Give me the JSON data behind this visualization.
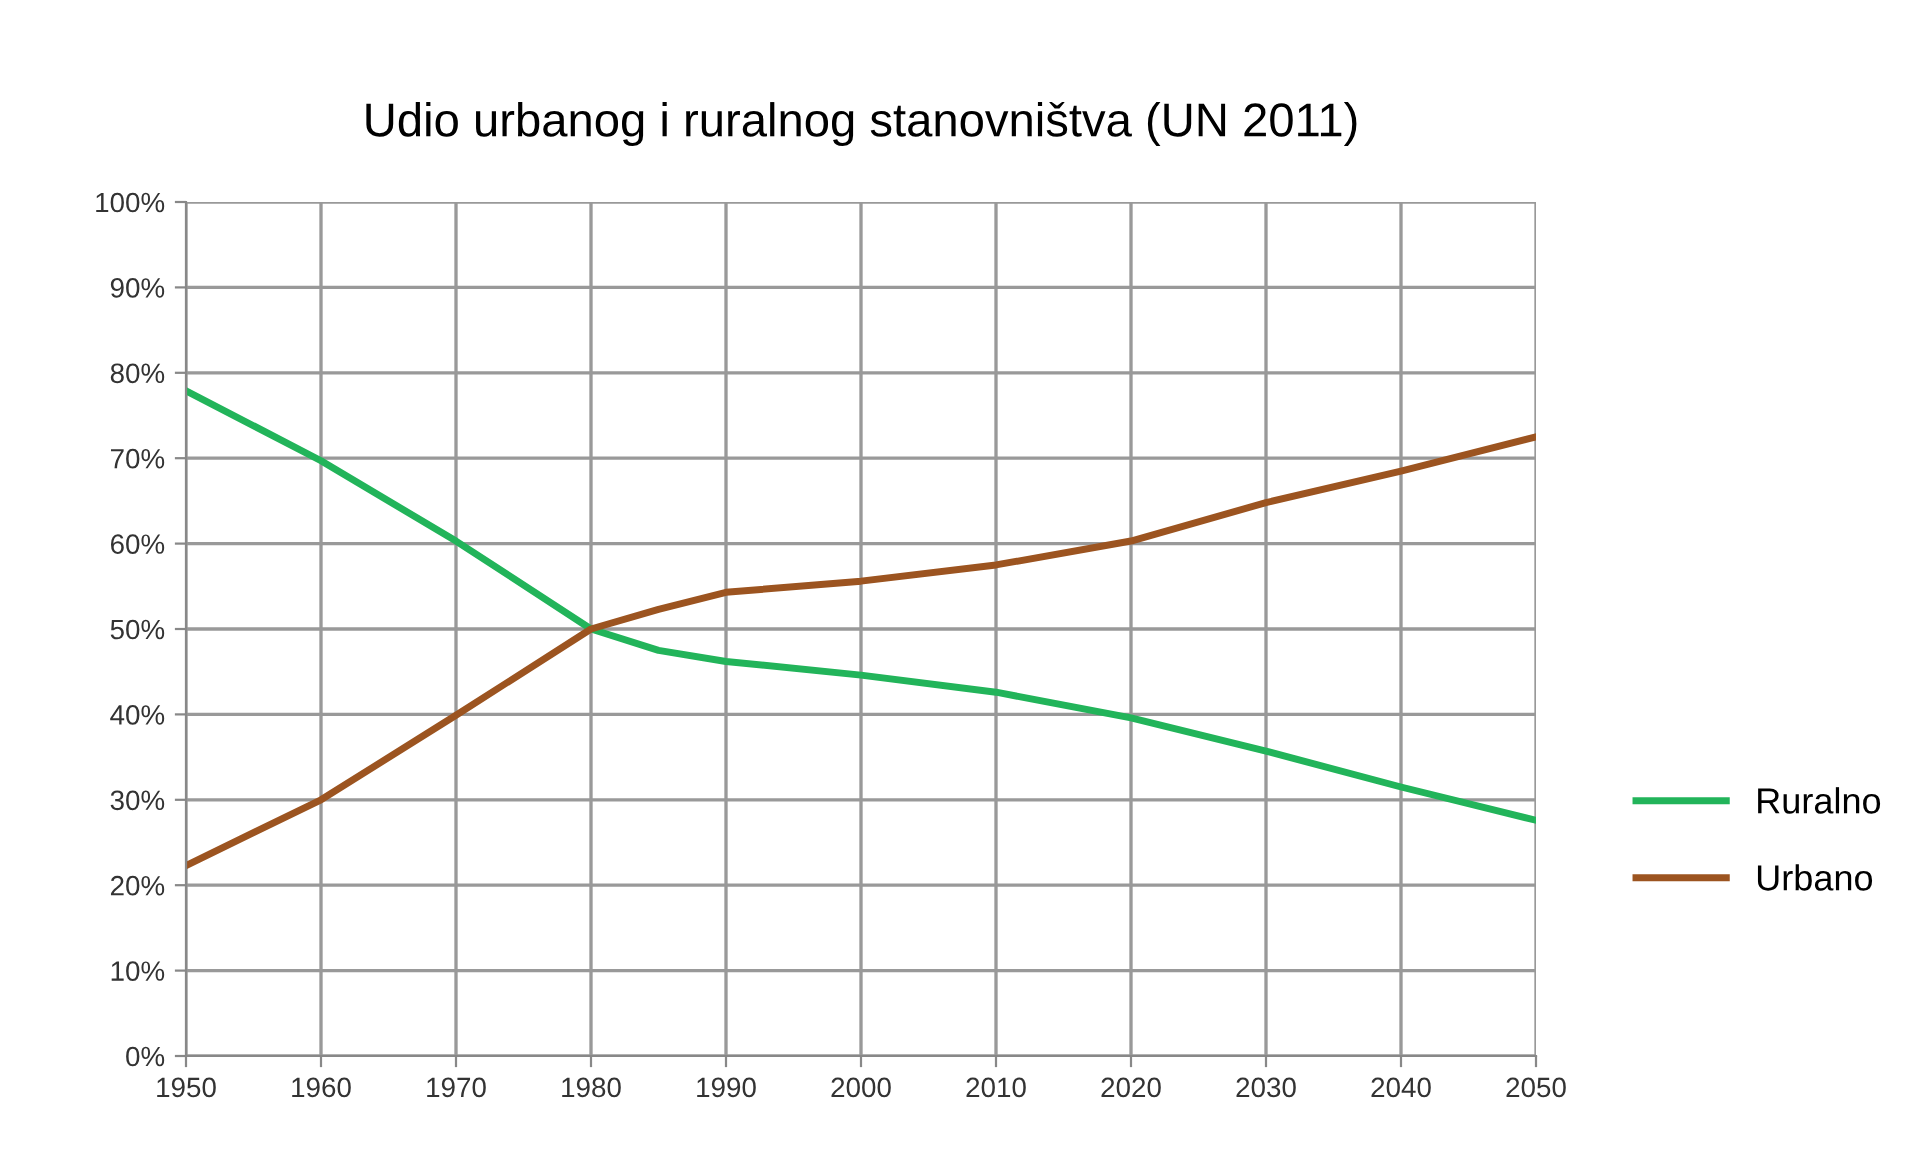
{
  "chart_data": {
    "type": "line",
    "title": "Udio urbanog i ruralnog stanovništva (UN 2011)",
    "x": [
      1950,
      1960,
      1970,
      1980,
      1985,
      1990,
      2000,
      2010,
      2020,
      2030,
      2040,
      2050
    ],
    "series": [
      {
        "name": "Ruralno",
        "color": "#22b45a",
        "values": [
          77.9,
          69.7,
          60.3,
          50,
          47.5,
          46.2,
          44.6,
          42.6,
          39.6,
          35.7,
          31.5,
          27.6
        ]
      },
      {
        "name": "Urbano",
        "color": "#9c5420",
        "values": [
          22.3,
          30.0,
          39.9,
          50,
          52.3,
          54.3,
          55.6,
          57.5,
          60.3,
          64.8,
          68.5,
          72.5
        ]
      }
    ],
    "xlim": [
      1950,
      2050
    ],
    "xticks": [
      1950,
      1960,
      1970,
      1980,
      1990,
      2000,
      2010,
      2020,
      2030,
      2040,
      2050
    ],
    "ylim": [
      0,
      100
    ],
    "yticks": [
      {
        "value": 0,
        "label": "0%"
      },
      {
        "value": 10,
        "label": "10%"
      },
      {
        "value": 20,
        "label": "20%"
      },
      {
        "value": 30,
        "label": "30%"
      },
      {
        "value": 40,
        "label": "40%"
      },
      {
        "value": 50,
        "label": "50%"
      },
      {
        "value": 60,
        "label": "60%"
      },
      {
        "value": 70,
        "label": "70%"
      },
      {
        "value": 80,
        "label": "80%"
      },
      {
        "value": 90,
        "label": "90%"
      },
      {
        "value": 100,
        "label": "100%"
      }
    ],
    "grid": true,
    "legend": "right",
    "marker": "none",
    "line_style": "solid"
  }
}
